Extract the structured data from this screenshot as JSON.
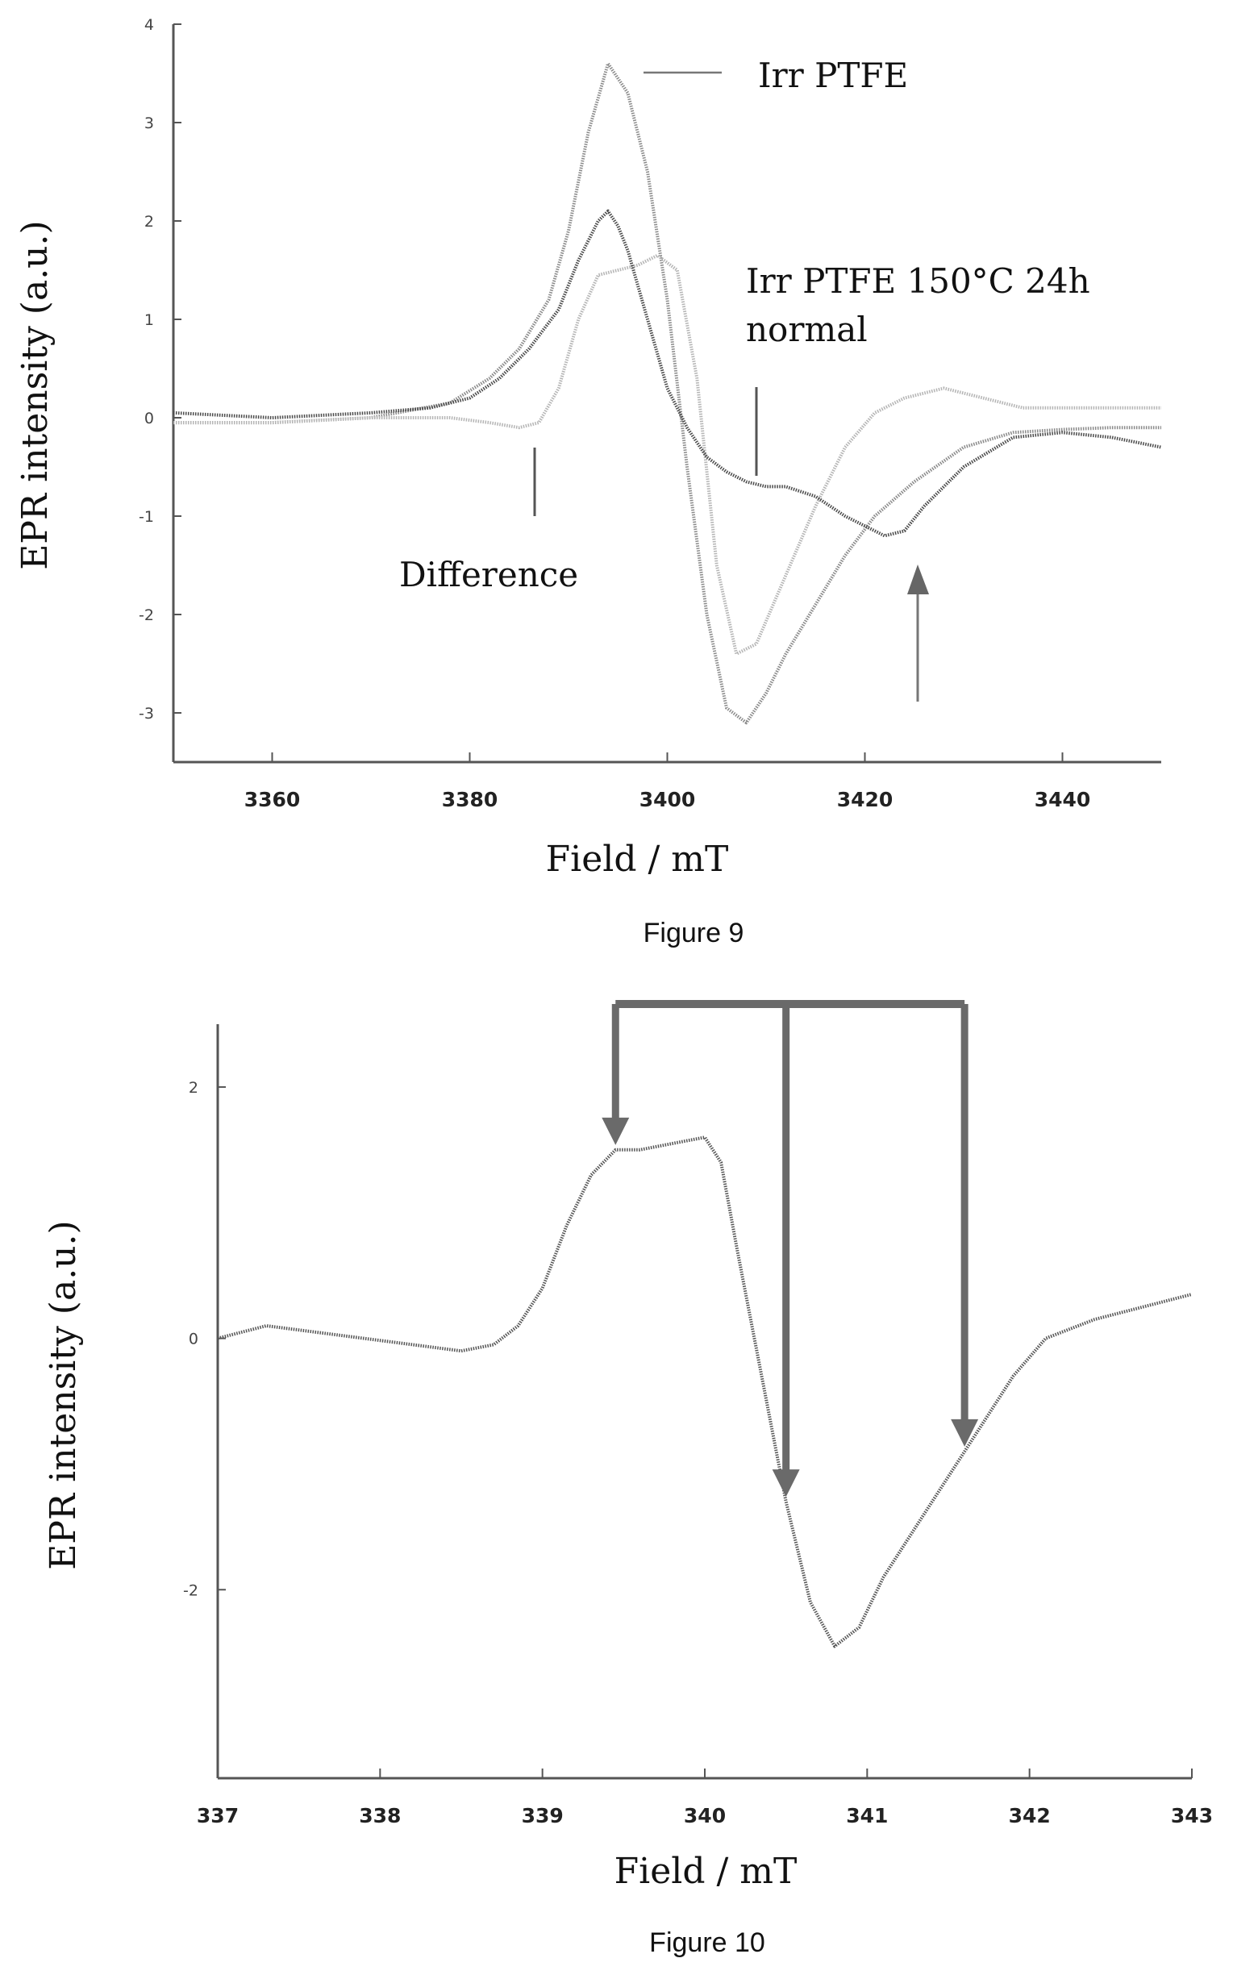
{
  "figures": [
    {
      "caption": "Figure 9"
    },
    {
      "caption": "Figure 10"
    }
  ],
  "chart_data": [
    {
      "type": "line",
      "title": "",
      "xlabel": "Field / mT",
      "ylabel": "EPR intensity (a.u.)",
      "xlim": [
        3350,
        3450
      ],
      "ylim": [
        -3.5,
        4
      ],
      "xticks": [
        3360,
        3380,
        3400,
        3420,
        3440
      ],
      "yticks": [
        4,
        3,
        2,
        1,
        0,
        -1,
        -2,
        -3
      ],
      "ytick_labels": [
        "4",
        "3",
        "2",
        "1",
        "0",
        "-1",
        "-2",
        "-3"
      ],
      "legend_label": "Irr PTFE",
      "annotations": {
        "irr_ptfe_150": "Irr PTFE 150°C 24h",
        "normal": "normal",
        "difference": "Difference"
      },
      "series": [
        {
          "name": "Irr PTFE",
          "color": "#8a8a8a",
          "x": [
            3350,
            3360,
            3370,
            3378,
            3382,
            3385,
            3388,
            3390,
            3392,
            3394,
            3396,
            3398,
            3400,
            3402,
            3404,
            3406,
            3408,
            3410,
            3412,
            3415,
            3418,
            3421,
            3425,
            3430,
            3435,
            3440,
            3445,
            3450
          ],
          "y": [
            -0.05,
            -0.05,
            0.0,
            0.15,
            0.4,
            0.7,
            1.2,
            1.9,
            2.9,
            3.6,
            3.3,
            2.5,
            1.2,
            -0.5,
            -2.0,
            -2.95,
            -3.1,
            -2.8,
            -2.4,
            -1.9,
            -1.4,
            -1.0,
            -0.65,
            -0.3,
            -0.15,
            -0.12,
            -0.1,
            -0.1
          ]
        },
        {
          "name": "Irr PTFE 150°C 24h",
          "color": "#b4b4b4",
          "x": [
            3350,
            3360,
            3370,
            3378,
            3382,
            3385,
            3387,
            3389,
            3391,
            3393,
            3395,
            3397,
            3399,
            3401,
            3403,
            3405,
            3407,
            3409,
            3412,
            3415,
            3418,
            3421,
            3424,
            3428,
            3432,
            3436,
            3440,
            3445,
            3450
          ],
          "y": [
            -0.05,
            -0.05,
            0.0,
            0.0,
            -0.05,
            -0.1,
            -0.05,
            0.3,
            1.0,
            1.45,
            1.5,
            1.55,
            1.65,
            1.5,
            0.4,
            -1.5,
            -2.4,
            -2.3,
            -1.6,
            -0.9,
            -0.3,
            0.05,
            0.2,
            0.3,
            0.2,
            0.1,
            0.1,
            0.1,
            0.1
          ]
        },
        {
          "name": "Difference",
          "color": "#4a4a4a",
          "x": [
            3350,
            3360,
            3370,
            3376,
            3380,
            3383,
            3386,
            3389,
            3391,
            3393,
            3394,
            3395,
            3396,
            3398,
            3400,
            3402,
            3404,
            3406,
            3408,
            3410,
            3412,
            3415,
            3418,
            3420,
            3422,
            3424,
            3426,
            3430,
            3435,
            3440,
            3445,
            3450
          ],
          "y": [
            0.05,
            0.0,
            0.05,
            0.1,
            0.2,
            0.4,
            0.7,
            1.1,
            1.6,
            2.0,
            2.1,
            1.95,
            1.7,
            1.0,
            0.3,
            -0.1,
            -0.4,
            -0.55,
            -0.65,
            -0.7,
            -0.7,
            -0.8,
            -1.0,
            -1.1,
            -1.2,
            -1.15,
            -0.9,
            -0.5,
            -0.2,
            -0.15,
            -0.2,
            -0.3
          ]
        }
      ]
    },
    {
      "type": "line",
      "title": "",
      "xlabel": "Field / mT",
      "ylabel": "EPR intensity (a.u.)",
      "xlim": [
        337,
        343
      ],
      "ylim": [
        -3.5,
        2.5
      ],
      "xticks": [
        337,
        338,
        339,
        340,
        341,
        342,
        343
      ],
      "yticks": [
        2,
        0,
        -2
      ],
      "ytick_labels": [
        "2",
        "0",
        "-2"
      ],
      "series": [
        {
          "name": "",
          "color": "#555555",
          "x": [
            337.0,
            337.3,
            337.6,
            337.9,
            338.2,
            338.5,
            338.7,
            338.85,
            339.0,
            339.15,
            339.3,
            339.45,
            339.6,
            339.8,
            340.0,
            340.1,
            340.2,
            340.35,
            340.5,
            340.65,
            340.8,
            340.95,
            341.1,
            341.3,
            341.5,
            341.7,
            341.9,
            342.1,
            342.4,
            342.7,
            343.0
          ],
          "y": [
            0.0,
            0.1,
            0.05,
            0.0,
            -0.05,
            -0.1,
            -0.05,
            0.1,
            0.4,
            0.9,
            1.3,
            1.5,
            1.5,
            1.55,
            1.6,
            1.4,
            0.7,
            -0.3,
            -1.3,
            -2.1,
            -2.45,
            -2.3,
            -1.9,
            -1.5,
            -1.1,
            -0.7,
            -0.3,
            0.0,
            0.15,
            0.25,
            0.35
          ]
        }
      ],
      "bracket_points_x": [
        339.45,
        340.5,
        341.6
      ]
    }
  ]
}
